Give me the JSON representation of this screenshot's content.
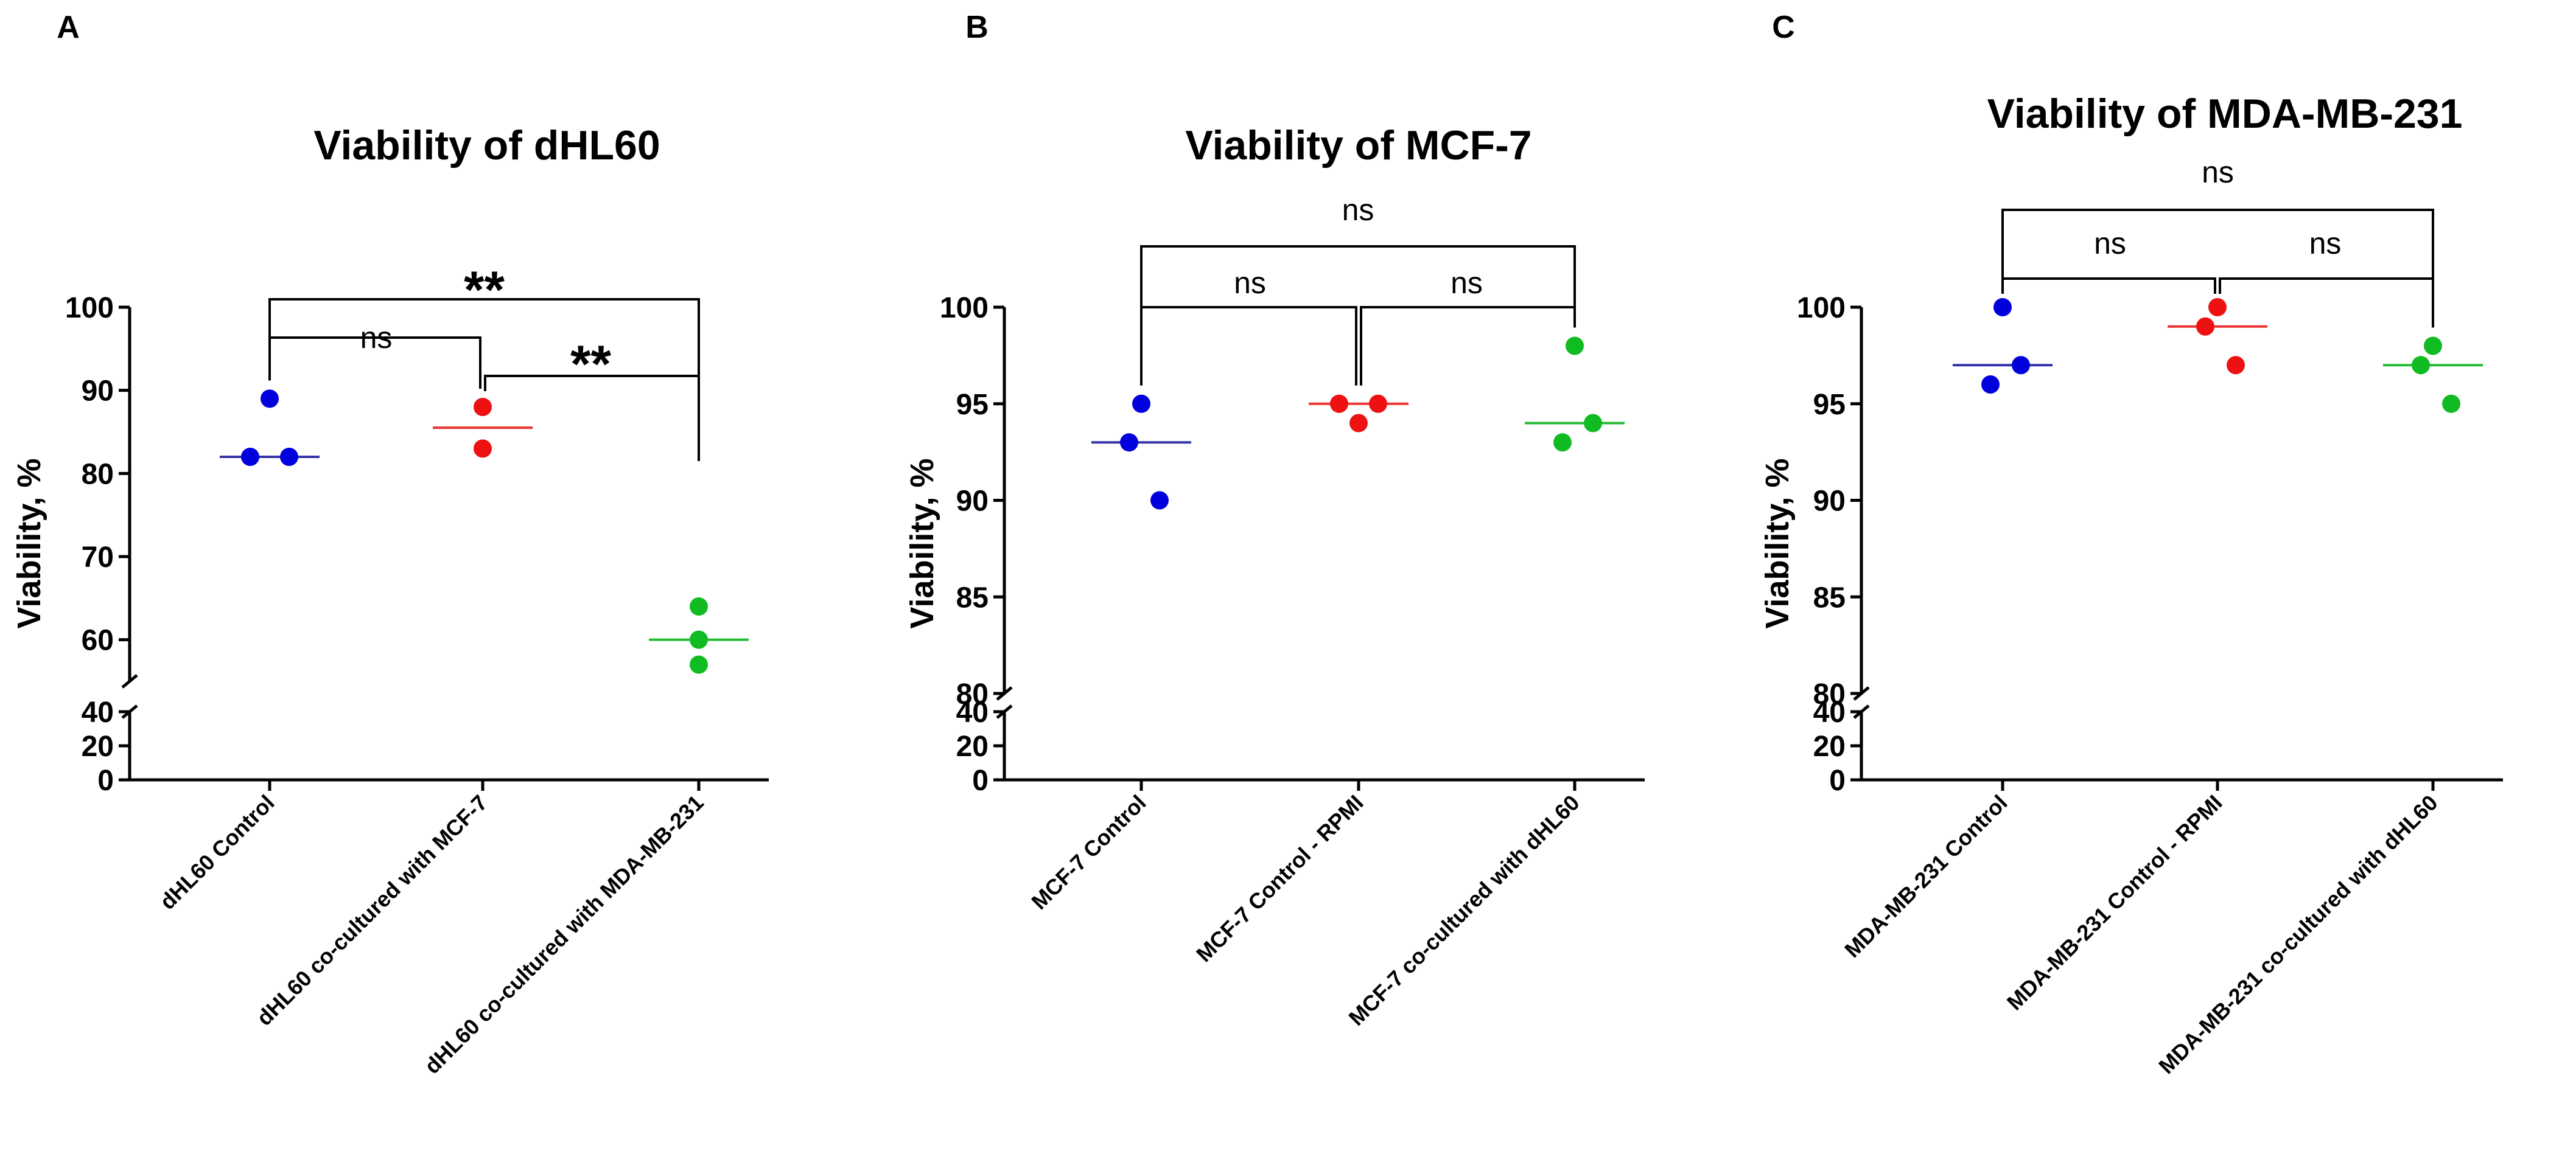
{
  "chart_data": [
    {
      "panel": "A",
      "type": "scatter",
      "title": "Viability of dHL60",
      "xlabel": "",
      "ylabel": "Viability, %",
      "categories": [
        "dHL60 Control",
        "dHL60 co-cultured with MCF-7",
        "dHL60 co-cultured with MDA-MB-231"
      ],
      "colors": [
        "#0000dd",
        "#ee1111",
        "#11bb22"
      ],
      "line_colors": [
        "#3333aa",
        "#ee3333",
        "#22bb33"
      ],
      "series": [
        {
          "name": "dHL60 Control",
          "values": [
            89,
            82,
            82
          ],
          "mean": 82
        },
        {
          "name": "dHL60 co-cultured with MCF-7",
          "values": [
            88,
            83
          ],
          "mean": 85.5
        },
        {
          "name": "dHL60 co-cultured with MDA-MB-231",
          "values": [
            64,
            60,
            57
          ],
          "mean": 60
        }
      ],
      "ylim_low": [
        0,
        40
      ],
      "ylim_high": [
        55,
        100
      ],
      "yticks_low": [
        "0",
        "20",
        "40"
      ],
      "yticks_low_values": [
        0,
        20,
        40
      ],
      "yticks_high": [
        "60",
        "70",
        "80",
        "90",
        "100"
      ],
      "yticks_high_values": [
        60,
        70,
        80,
        90,
        100
      ],
      "comparisons": [
        {
          "from": 0,
          "to": 1,
          "label": "ns"
        },
        {
          "from": 1,
          "to": 2,
          "label": "**"
        },
        {
          "from": 0,
          "to": 2,
          "label": "**"
        }
      ]
    },
    {
      "panel": "B",
      "type": "scatter",
      "title": "Viability of MCF-7",
      "xlabel": "",
      "ylabel": "Viability, %",
      "categories": [
        "MCF-7 Control",
        "MCF-7 Control - RPMI",
        "MCF-7 co-cultured with dHL60"
      ],
      "colors": [
        "#0000dd",
        "#ee1111",
        "#11bb22"
      ],
      "line_colors": [
        "#3333aa",
        "#ee3333",
        "#22bb33"
      ],
      "series": [
        {
          "name": "MCF-7 Control",
          "values": [
            95,
            93,
            90
          ],
          "mean": 93
        },
        {
          "name": "MCF-7 Control - RPMI",
          "values": [
            94,
            95,
            95
          ],
          "mean": 95
        },
        {
          "name": "MCF-7 co-cultured with dHL60",
          "values": [
            98,
            93,
            94
          ],
          "mean": 94
        }
      ],
      "ylim_low": [
        0,
        40
      ],
      "ylim_high": [
        80,
        100
      ],
      "yticks_low": [
        "0",
        "20",
        "40"
      ],
      "yticks_low_values": [
        0,
        20,
        40
      ],
      "yticks_high": [
        "80",
        "85",
        "90",
        "95",
        "100"
      ],
      "yticks_high_values": [
        80,
        85,
        90,
        95,
        100
      ],
      "comparisons": [
        {
          "from": 0,
          "to": 1,
          "label": "ns"
        },
        {
          "from": 1,
          "to": 2,
          "label": "ns"
        },
        {
          "from": 0,
          "to": 2,
          "label": "ns"
        }
      ]
    },
    {
      "panel": "C",
      "type": "scatter",
      "title": "Viability of MDA-MB-231",
      "xlabel": "",
      "ylabel": "Viability, %",
      "categories": [
        "MDA-MB-231 Control",
        "MDA-MB-231 Control - RPMI",
        "MDA-MB-231 co-cultured with dHL60"
      ],
      "colors": [
        "#0000dd",
        "#ee1111",
        "#11bb22"
      ],
      "line_colors": [
        "#3333aa",
        "#ee3333",
        "#22bb33"
      ],
      "series": [
        {
          "name": "MDA-MB-231 Control",
          "values": [
            100,
            96,
            97
          ],
          "mean": 97
        },
        {
          "name": "MDA-MB-231 Control - RPMI",
          "values": [
            100,
            99,
            97
          ],
          "mean": 99
        },
        {
          "name": "MDA-MB-231 co-cultured with dHL60",
          "values": [
            98,
            97,
            95
          ],
          "mean": 97
        }
      ],
      "ylim_low": [
        0,
        40
      ],
      "ylim_high": [
        80,
        100
      ],
      "yticks_low": [
        "0",
        "20",
        "40"
      ],
      "yticks_low_values": [
        0,
        20,
        40
      ],
      "yticks_high": [
        "80",
        "85",
        "90",
        "95",
        "100"
      ],
      "yticks_high_values": [
        80,
        85,
        90,
        95,
        100
      ],
      "comparisons": [
        {
          "from": 0,
          "to": 1,
          "label": "ns"
        },
        {
          "from": 1,
          "to": 2,
          "label": "ns"
        },
        {
          "from": 0,
          "to": 2,
          "label": "ns"
        }
      ]
    }
  ]
}
